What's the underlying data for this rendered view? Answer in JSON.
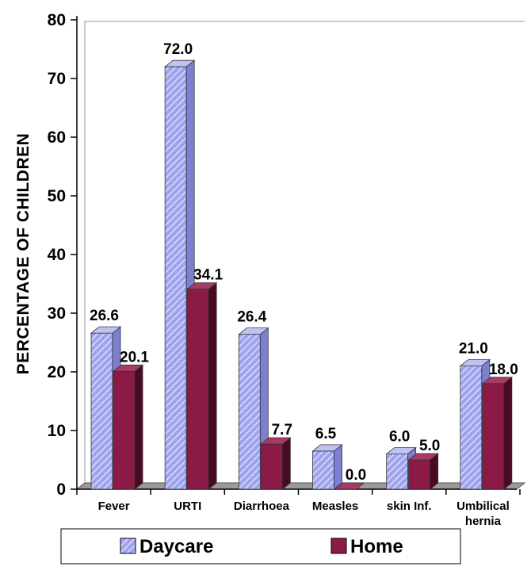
{
  "chart_data": {
    "type": "bar",
    "ylabel": "PERCENTAGE OF CHILDREN",
    "xlabel": "",
    "title": "",
    "ylim": [
      0,
      80
    ],
    "yticks": [
      0,
      10,
      20,
      30,
      40,
      50,
      60,
      70,
      80
    ],
    "categories": [
      [
        "Fever"
      ],
      [
        "URTI"
      ],
      [
        "Diarrhoea"
      ],
      [
        "Measles"
      ],
      [
        "skin Inf."
      ],
      [
        "Umbilical",
        "hernia"
      ]
    ],
    "series": [
      {
        "name": "Daycare",
        "values": [
          26.6,
          72.0,
          26.4,
          6.5,
          6.0,
          21.0
        ],
        "labels": [
          "26.6",
          "72.0",
          "26.4",
          "6.5",
          "6.0",
          "21.0"
        ]
      },
      {
        "name": "Home",
        "values": [
          20.1,
          34.1,
          7.7,
          0.0,
          5.0,
          18.0
        ],
        "labels": [
          "20.1",
          "34.1",
          "7.7",
          "0.0",
          "5.0",
          "18.0"
        ]
      }
    ],
    "legend_position": "bottom",
    "bar_style": "3d",
    "colors": {
      "daycare_front": "#9fa3ee",
      "daycare_stripe": "#e6e7fb",
      "daycare_side": "#7b80d0",
      "daycare_top": "#bfc2f3",
      "home_front": "#8b1a47",
      "home_side": "#4a0a24",
      "home_top": "#a83a66",
      "floor": "#9a9a9a"
    }
  }
}
